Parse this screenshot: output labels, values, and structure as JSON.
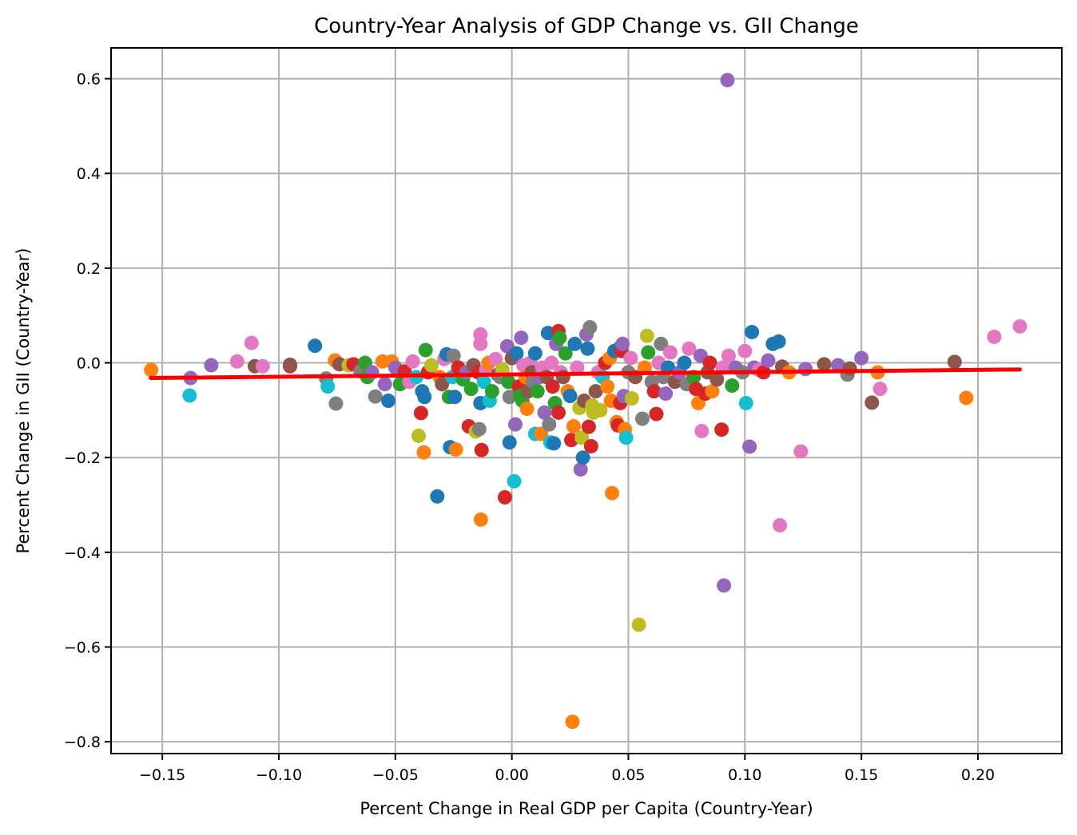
{
  "chart_data": {
    "type": "scatter",
    "title": "Country-Year Analysis of GDP Change vs. GII Change",
    "xlabel": "Percent Change in Real GDP per Capita (Country-Year)",
    "ylabel": "Percent Change in GII (Country-Year)",
    "xlim": [
      -0.172,
      0.236
    ],
    "ylim": [
      -0.825,
      0.665
    ],
    "xticks": [
      -0.15,
      -0.1,
      -0.05,
      0.0,
      0.05,
      0.1,
      0.15,
      0.2
    ],
    "xtick_labels": [
      "−0.15",
      "−0.10",
      "−0.05",
      "0.00",
      "0.05",
      "0.10",
      "0.15",
      "0.20"
    ],
    "yticks": [
      0.6,
      0.4,
      0.2,
      0.0,
      -0.2,
      -0.4,
      -0.6,
      -0.8
    ],
    "ytick_labels": [
      "0.6",
      "0.4",
      "0.2",
      "0.0",
      "−0.2",
      "−0.4",
      "−0.6",
      "−0.8"
    ],
    "grid": true,
    "legend": "none",
    "palette": {
      "blue": "#1f77b4",
      "orange": "#ff7f0e",
      "green": "#2ca02c",
      "red": "#d62728",
      "purple": "#9467bd",
      "brown": "#8c564b",
      "pink": "#e377c2",
      "gray": "#7f7f7f",
      "olive": "#bcbd22",
      "cyan": "#17becf"
    },
    "trend_line": {
      "color": "#ff0000",
      "x": [
        -0.155,
        0.218
      ],
      "y": [
        -0.032,
        -0.014
      ]
    },
    "points": [
      {
        "x": -0.1548,
        "y": -0.015,
        "c": "orange"
      },
      {
        "x": -0.1379,
        "y": -0.032,
        "c": "purple"
      },
      {
        "x": -0.1383,
        "y": -0.069,
        "c": "cyan"
      },
      {
        "x": -0.129,
        "y": -0.005,
        "c": "purple"
      },
      {
        "x": -0.1179,
        "y": 0.003,
        "c": "pink"
      },
      {
        "x": -0.1117,
        "y": 0.042,
        "c": "pink"
      },
      {
        "x": -0.1103,
        "y": -0.007,
        "c": "brown"
      },
      {
        "x": -0.1069,
        "y": -0.007,
        "c": "pink"
      },
      {
        "x": -0.0952,
        "y": -0.007,
        "c": "red"
      },
      {
        "x": -0.0952,
        "y": -0.004,
        "c": "brown"
      },
      {
        "x": -0.0845,
        "y": 0.036,
        "c": "blue"
      },
      {
        "x": -0.0797,
        "y": -0.033,
        "c": "gray"
      },
      {
        "x": -0.079,
        "y": -0.05,
        "c": "cyan"
      },
      {
        "x": -0.0755,
        "y": -0.086,
        "c": "gray"
      },
      {
        "x": -0.0759,
        "y": 0.005,
        "c": "orange"
      },
      {
        "x": -0.074,
        "y": -0.003,
        "c": "brown"
      },
      {
        "x": -0.07,
        "y": -0.005,
        "c": "olive"
      },
      {
        "x": -0.068,
        "y": -0.003,
        "c": "red"
      },
      {
        "x": -0.065,
        "y": -0.018,
        "c": "gray"
      },
      {
        "x": -0.063,
        "y": 0.0,
        "c": "green"
      },
      {
        "x": -0.062,
        "y": -0.03,
        "c": "green"
      },
      {
        "x": -0.06,
        "y": -0.02,
        "c": "purple"
      },
      {
        "x": -0.0586,
        "y": -0.071,
        "c": "gray"
      },
      {
        "x": -0.0555,
        "y": 0.003,
        "c": "orange"
      },
      {
        "x": -0.0545,
        "y": -0.045,
        "c": "purple"
      },
      {
        "x": -0.053,
        "y": -0.08,
        "c": "blue"
      },
      {
        "x": -0.0515,
        "y": 0.003,
        "c": "orange"
      },
      {
        "x": -0.05,
        "y": -0.01,
        "c": "purple"
      },
      {
        "x": -0.048,
        "y": -0.045,
        "c": "green"
      },
      {
        "x": -0.046,
        "y": -0.018,
        "c": "red"
      },
      {
        "x": -0.044,
        "y": -0.04,
        "c": "pink"
      },
      {
        "x": -0.0425,
        "y": 0.003,
        "c": "pink"
      },
      {
        "x": -0.041,
        "y": -0.03,
        "c": "cyan"
      },
      {
        "x": -0.04,
        "y": -0.154,
        "c": "olive"
      },
      {
        "x": -0.039,
        "y": -0.106,
        "c": "red"
      },
      {
        "x": -0.0385,
        "y": -0.06,
        "c": "blue"
      },
      {
        "x": -0.0378,
        "y": -0.189,
        "c": "orange"
      },
      {
        "x": -0.0375,
        "y": -0.072,
        "c": "blue"
      },
      {
        "x": -0.037,
        "y": 0.027,
        "c": "green"
      },
      {
        "x": -0.036,
        "y": -0.02,
        "c": "red"
      },
      {
        "x": -0.0345,
        "y": -0.005,
        "c": "olive"
      },
      {
        "x": -0.032,
        "y": -0.282,
        "c": "blue"
      },
      {
        "x": -0.031,
        "y": -0.03,
        "c": "orange"
      },
      {
        "x": -0.03,
        "y": -0.045,
        "c": "brown"
      },
      {
        "x": -0.029,
        "y": 0.008,
        "c": "pink"
      },
      {
        "x": -0.028,
        "y": 0.018,
        "c": "blue"
      },
      {
        "x": -0.027,
        "y": -0.072,
        "c": "green"
      },
      {
        "x": -0.0265,
        "y": -0.178,
        "c": "blue"
      },
      {
        "x": -0.0255,
        "y": -0.03,
        "c": "cyan"
      },
      {
        "x": -0.025,
        "y": 0.015,
        "c": "gray"
      },
      {
        "x": -0.0245,
        "y": -0.072,
        "c": "blue"
      },
      {
        "x": -0.024,
        "y": -0.183,
        "c": "orange"
      },
      {
        "x": -0.023,
        "y": -0.01,
        "c": "red"
      },
      {
        "x": -0.021,
        "y": -0.035,
        "c": "green"
      },
      {
        "x": -0.0195,
        "y": -0.02,
        "c": "purple"
      },
      {
        "x": -0.0185,
        "y": -0.134,
        "c": "red"
      },
      {
        "x": -0.0175,
        "y": -0.055,
        "c": "green"
      },
      {
        "x": -0.0165,
        "y": -0.005,
        "c": "brown"
      },
      {
        "x": -0.0155,
        "y": -0.145,
        "c": "olive"
      },
      {
        "x": -0.0145,
        "y": -0.02,
        "c": "red"
      },
      {
        "x": -0.0135,
        "y": 0.06,
        "c": "pink"
      },
      {
        "x": -0.0135,
        "y": 0.04,
        "c": "pink"
      },
      {
        "x": -0.0135,
        "y": -0.085,
        "c": "blue"
      },
      {
        "x": -0.0133,
        "y": -0.331,
        "c": "orange"
      },
      {
        "x": -0.013,
        "y": -0.184,
        "c": "red"
      },
      {
        "x": -0.014,
        "y": -0.14,
        "c": "gray"
      },
      {
        "x": -0.012,
        "y": -0.04,
        "c": "cyan"
      },
      {
        "x": -0.011,
        "y": -0.015,
        "c": "pink"
      },
      {
        "x": -0.01,
        "y": 0.0,
        "c": "orange"
      },
      {
        "x": -0.0095,
        "y": -0.08,
        "c": "cyan"
      },
      {
        "x": -0.0085,
        "y": -0.06,
        "c": "green"
      },
      {
        "x": -0.007,
        "y": 0.008,
        "c": "pink"
      },
      {
        "x": -0.006,
        "y": -0.025,
        "c": "brown"
      },
      {
        "x": -0.005,
        "y": -0.03,
        "c": "gray"
      },
      {
        "x": -0.004,
        "y": -0.015,
        "c": "olive"
      },
      {
        "x": -0.003,
        "y": -0.284,
        "c": "red"
      },
      {
        "x": -0.002,
        "y": 0.035,
        "c": "purple"
      },
      {
        "x": -0.0015,
        "y": -0.04,
        "c": "green"
      },
      {
        "x": -0.001,
        "y": -0.168,
        "c": "blue"
      },
      {
        "x": -0.001,
        "y": -0.072,
        "c": "gray"
      },
      {
        "x": 0.0,
        "y": 0.01,
        "c": "brown"
      },
      {
        "x": 0.001,
        "y": -0.25,
        "c": "cyan"
      },
      {
        "x": 0.0015,
        "y": -0.13,
        "c": "purple"
      },
      {
        "x": 0.002,
        "y": 0.02,
        "c": "blue"
      },
      {
        "x": 0.003,
        "y": -0.05,
        "c": "red"
      },
      {
        "x": 0.0035,
        "y": -0.07,
        "c": "green"
      },
      {
        "x": 0.004,
        "y": 0.053,
        "c": "purple"
      },
      {
        "x": 0.0045,
        "y": -0.08,
        "c": "green"
      },
      {
        "x": 0.005,
        "y": -0.005,
        "c": "pink"
      },
      {
        "x": 0.006,
        "y": -0.03,
        "c": "orange"
      },
      {
        "x": 0.0065,
        "y": -0.097,
        "c": "orange"
      },
      {
        "x": 0.007,
        "y": -0.06,
        "c": "brown"
      },
      {
        "x": 0.008,
        "y": 0.0,
        "c": "pink"
      },
      {
        "x": 0.0085,
        "y": -0.02,
        "c": "brown"
      },
      {
        "x": 0.009,
        "y": -0.04,
        "c": "gray"
      },
      {
        "x": 0.01,
        "y": 0.02,
        "c": "blue"
      },
      {
        "x": 0.01,
        "y": -0.15,
        "c": "cyan"
      },
      {
        "x": 0.011,
        "y": -0.06,
        "c": "green"
      },
      {
        "x": 0.012,
        "y": -0.03,
        "c": "purple"
      },
      {
        "x": 0.0125,
        "y": -0.15,
        "c": "orange"
      },
      {
        "x": 0.013,
        "y": -0.01,
        "c": "pink"
      },
      {
        "x": 0.014,
        "y": -0.105,
        "c": "purple"
      },
      {
        "x": 0.015,
        "y": -0.03,
        "c": "brown"
      },
      {
        "x": 0.0155,
        "y": 0.063,
        "c": "blue"
      },
      {
        "x": 0.016,
        "y": -0.13,
        "c": "gray"
      },
      {
        "x": 0.0165,
        "y": -0.168,
        "c": "cyan"
      },
      {
        "x": 0.017,
        "y": 0.0,
        "c": "pink"
      },
      {
        "x": 0.0175,
        "y": -0.05,
        "c": "red"
      },
      {
        "x": 0.018,
        "y": -0.17,
        "c": "blue"
      },
      {
        "x": 0.0185,
        "y": -0.085,
        "c": "green"
      },
      {
        "x": 0.019,
        "y": 0.04,
        "c": "purple"
      },
      {
        "x": 0.02,
        "y": 0.067,
        "c": "red"
      },
      {
        "x": 0.02,
        "y": -0.105,
        "c": "red"
      },
      {
        "x": 0.0205,
        "y": 0.053,
        "c": "green"
      },
      {
        "x": 0.021,
        "y": -0.02,
        "c": "pink"
      },
      {
        "x": 0.022,
        "y": -0.03,
        "c": "brown"
      },
      {
        "x": 0.023,
        "y": 0.02,
        "c": "green"
      },
      {
        "x": 0.024,
        "y": -0.06,
        "c": "orange"
      },
      {
        "x": 0.025,
        "y": -0.07,
        "c": "blue"
      },
      {
        "x": 0.0255,
        "y": -0.163,
        "c": "red"
      },
      {
        "x": 0.026,
        "y": -0.758,
        "c": "orange"
      },
      {
        "x": 0.0265,
        "y": -0.134,
        "c": "orange"
      },
      {
        "x": 0.027,
        "y": 0.04,
        "c": "blue"
      },
      {
        "x": 0.028,
        "y": -0.01,
        "c": "pink"
      },
      {
        "x": 0.029,
        "y": -0.095,
        "c": "olive"
      },
      {
        "x": 0.0295,
        "y": -0.225,
        "c": "purple"
      },
      {
        "x": 0.03,
        "y": -0.158,
        "c": "olive"
      },
      {
        "x": 0.0305,
        "y": -0.2,
        "c": "blue"
      },
      {
        "x": 0.031,
        "y": -0.08,
        "c": "brown"
      },
      {
        "x": 0.032,
        "y": 0.06,
        "c": "purple"
      },
      {
        "x": 0.0325,
        "y": 0.03,
        "c": "blue"
      },
      {
        "x": 0.033,
        "y": -0.135,
        "c": "red"
      },
      {
        "x": 0.0335,
        "y": 0.075,
        "c": "gray"
      },
      {
        "x": 0.034,
        "y": -0.176,
        "c": "red"
      },
      {
        "x": 0.0345,
        "y": -0.09,
        "c": "olive"
      },
      {
        "x": 0.035,
        "y": -0.105,
        "c": "olive"
      },
      {
        "x": 0.036,
        "y": -0.06,
        "c": "brown"
      },
      {
        "x": 0.037,
        "y": -0.02,
        "c": "pink"
      },
      {
        "x": 0.038,
        "y": -0.1,
        "c": "olive"
      },
      {
        "x": 0.039,
        "y": -0.03,
        "c": "cyan"
      },
      {
        "x": 0.04,
        "y": 0.0,
        "c": "red"
      },
      {
        "x": 0.041,
        "y": -0.05,
        "c": "orange"
      },
      {
        "x": 0.042,
        "y": 0.01,
        "c": "orange"
      },
      {
        "x": 0.0425,
        "y": -0.08,
        "c": "orange"
      },
      {
        "x": 0.043,
        "y": -0.275,
        "c": "orange"
      },
      {
        "x": 0.044,
        "y": 0.025,
        "c": "blue"
      },
      {
        "x": 0.045,
        "y": -0.125,
        "c": "orange"
      },
      {
        "x": 0.0455,
        "y": -0.132,
        "c": "red"
      },
      {
        "x": 0.046,
        "y": 0.03,
        "c": "blue"
      },
      {
        "x": 0.0465,
        "y": -0.085,
        "c": "red"
      },
      {
        "x": 0.047,
        "y": 0.025,
        "c": "red"
      },
      {
        "x": 0.0475,
        "y": 0.04,
        "c": "purple"
      },
      {
        "x": 0.048,
        "y": -0.07,
        "c": "purple"
      },
      {
        "x": 0.0485,
        "y": -0.14,
        "c": "orange"
      },
      {
        "x": 0.049,
        "y": -0.158,
        "c": "cyan"
      },
      {
        "x": 0.05,
        "y": -0.02,
        "c": "gray"
      },
      {
        "x": 0.051,
        "y": 0.01,
        "c": "pink"
      },
      {
        "x": 0.0515,
        "y": -0.075,
        "c": "olive"
      },
      {
        "x": 0.053,
        "y": -0.03,
        "c": "brown"
      },
      {
        "x": 0.0545,
        "y": -0.553,
        "c": "olive"
      },
      {
        "x": 0.056,
        "y": -0.118,
        "c": "gray"
      },
      {
        "x": 0.057,
        "y": -0.01,
        "c": "orange"
      },
      {
        "x": 0.058,
        "y": 0.057,
        "c": "olive"
      },
      {
        "x": 0.0585,
        "y": 0.022,
        "c": "green"
      },
      {
        "x": 0.06,
        "y": -0.04,
        "c": "gray"
      },
      {
        "x": 0.061,
        "y": -0.06,
        "c": "red"
      },
      {
        "x": 0.062,
        "y": -0.108,
        "c": "red"
      },
      {
        "x": 0.063,
        "y": 0.0,
        "c": "pink"
      },
      {
        "x": 0.064,
        "y": 0.04,
        "c": "gray"
      },
      {
        "x": 0.065,
        "y": -0.03,
        "c": "gray"
      },
      {
        "x": 0.066,
        "y": -0.065,
        "c": "purple"
      },
      {
        "x": 0.067,
        "y": -0.01,
        "c": "blue"
      },
      {
        "x": 0.068,
        "y": 0.022,
        "c": "pink"
      },
      {
        "x": 0.07,
        "y": -0.04,
        "c": "brown"
      },
      {
        "x": 0.072,
        "y": -0.02,
        "c": "purple"
      },
      {
        "x": 0.074,
        "y": 0.0,
        "c": "blue"
      },
      {
        "x": 0.075,
        "y": -0.045,
        "c": "gray"
      },
      {
        "x": 0.076,
        "y": 0.03,
        "c": "pink"
      },
      {
        "x": 0.078,
        "y": -0.03,
        "c": "green"
      },
      {
        "x": 0.079,
        "y": -0.055,
        "c": "red"
      },
      {
        "x": 0.08,
        "y": -0.085,
        "c": "orange"
      },
      {
        "x": 0.081,
        "y": 0.015,
        "c": "purple"
      },
      {
        "x": 0.0815,
        "y": -0.144,
        "c": "pink"
      },
      {
        "x": 0.083,
        "y": -0.065,
        "c": "red"
      },
      {
        "x": 0.084,
        "y": -0.02,
        "c": "brown"
      },
      {
        "x": 0.085,
        "y": 0.0,
        "c": "red"
      },
      {
        "x": 0.086,
        "y": -0.06,
        "c": "orange"
      },
      {
        "x": 0.088,
        "y": -0.035,
        "c": "brown"
      },
      {
        "x": 0.09,
        "y": -0.141,
        "c": "red"
      },
      {
        "x": 0.0905,
        "y": -0.01,
        "c": "pink"
      },
      {
        "x": 0.091,
        "y": -0.47,
        "c": "purple"
      },
      {
        "x": 0.0925,
        "y": 0.597,
        "c": "purple"
      },
      {
        "x": 0.093,
        "y": 0.015,
        "c": "pink"
      },
      {
        "x": 0.0945,
        "y": -0.048,
        "c": "green"
      },
      {
        "x": 0.096,
        "y": -0.01,
        "c": "purple"
      },
      {
        "x": 0.099,
        "y": -0.02,
        "c": "gray"
      },
      {
        "x": 0.1,
        "y": 0.025,
        "c": "pink"
      },
      {
        "x": 0.1005,
        "y": -0.085,
        "c": "cyan"
      },
      {
        "x": 0.102,
        "y": -0.177,
        "c": "purple"
      },
      {
        "x": 0.103,
        "y": 0.065,
        "c": "blue"
      },
      {
        "x": 0.104,
        "y": -0.01,
        "c": "purple"
      },
      {
        "x": 0.106,
        "y": -0.015,
        "c": "pink"
      },
      {
        "x": 0.108,
        "y": -0.02,
        "c": "red"
      },
      {
        "x": 0.11,
        "y": 0.005,
        "c": "purple"
      },
      {
        "x": 0.112,
        "y": 0.04,
        "c": "blue"
      },
      {
        "x": 0.1145,
        "y": 0.045,
        "c": "blue"
      },
      {
        "x": 0.115,
        "y": -0.343,
        "c": "pink"
      },
      {
        "x": 0.116,
        "y": -0.008,
        "c": "brown"
      },
      {
        "x": 0.119,
        "y": -0.02,
        "c": "orange"
      },
      {
        "x": 0.124,
        "y": -0.187,
        "c": "pink"
      },
      {
        "x": 0.126,
        "y": -0.013,
        "c": "purple"
      },
      {
        "x": 0.134,
        "y": -0.003,
        "c": "brown"
      },
      {
        "x": 0.14,
        "y": -0.005,
        "c": "purple"
      },
      {
        "x": 0.144,
        "y": -0.025,
        "c": "gray"
      },
      {
        "x": 0.145,
        "y": -0.012,
        "c": "brown"
      },
      {
        "x": 0.15,
        "y": 0.01,
        "c": "purple"
      },
      {
        "x": 0.1545,
        "y": -0.084,
        "c": "brown"
      },
      {
        "x": 0.157,
        "y": -0.02,
        "c": "orange"
      },
      {
        "x": 0.158,
        "y": -0.055,
        "c": "pink"
      },
      {
        "x": 0.19,
        "y": 0.002,
        "c": "brown"
      },
      {
        "x": 0.195,
        "y": -0.074,
        "c": "orange"
      },
      {
        "x": 0.207,
        "y": 0.055,
        "c": "pink"
      },
      {
        "x": 0.218,
        "y": 0.077,
        "c": "pink"
      }
    ]
  }
}
